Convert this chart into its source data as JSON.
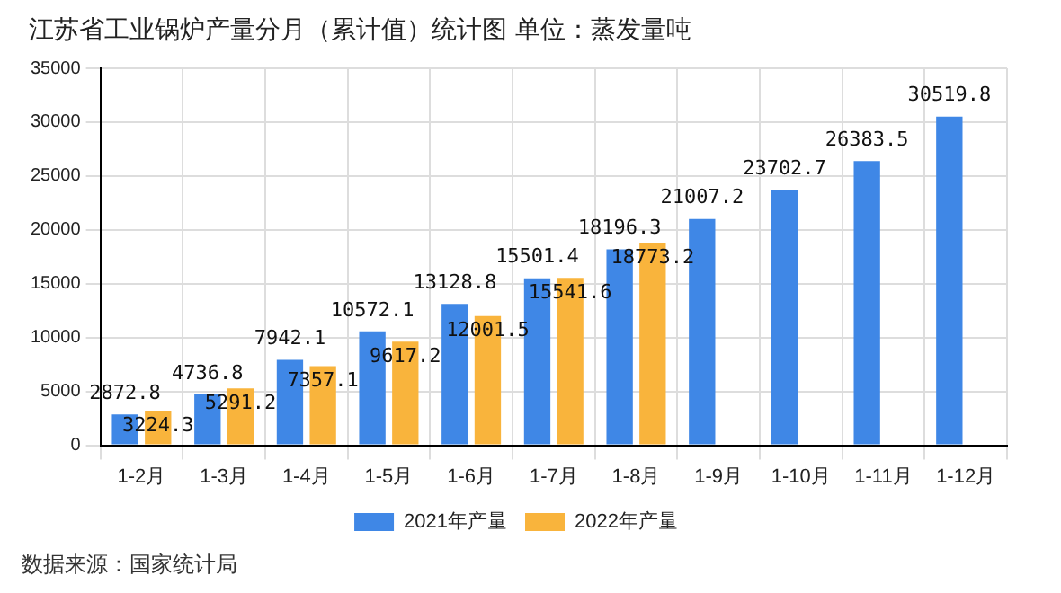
{
  "chart_data": {
    "type": "bar",
    "title": "江苏省工业锅炉产量分月（累计值）统计图 单位：蒸发量吨",
    "categories": [
      "1-2月",
      "1-3月",
      "1-4月",
      "1-5月",
      "1-6月",
      "1-7月",
      "1-8月",
      "1-9月",
      "1-10月",
      "1-11月",
      "1-12月"
    ],
    "series": [
      {
        "name": "2021年产量",
        "color": "#3f87e6",
        "values": [
          2872.8,
          4736.8,
          7942.1,
          10572.1,
          13128.8,
          15501.4,
          18196.3,
          21007.2,
          23702.7,
          26383.5,
          30519.8
        ]
      },
      {
        "name": "2022年产量",
        "color": "#f9b43c",
        "values": [
          3224.3,
          5291.2,
          7357.1,
          9617.2,
          12001.5,
          15541.6,
          18773.2,
          null,
          null,
          null,
          null
        ]
      }
    ],
    "ylim": [
      0,
      35000
    ],
    "yticks": [
      0,
      5000,
      10000,
      15000,
      20000,
      25000,
      30000,
      35000
    ],
    "grid": true,
    "legend": "bottom",
    "data_labels": true,
    "annotations": [
      "数据来源：国家统计局"
    ]
  }
}
